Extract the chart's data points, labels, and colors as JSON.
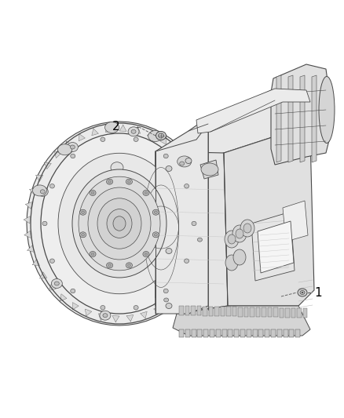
{
  "background_color": "#ffffff",
  "fig_width": 4.38,
  "fig_height": 5.33,
  "dpi": 100,
  "label1": "1",
  "label2": "2",
  "line_color": "#4a4a4a",
  "text_color": "#000000",
  "lw_main": 0.8,
  "lw_thin": 0.4,
  "lw_medium": 0.6,
  "fill_light": "#f2f2f2",
  "fill_mid": "#e0e0e0",
  "fill_dark": "#cccccc",
  "fill_darker": "#b8b8b8"
}
